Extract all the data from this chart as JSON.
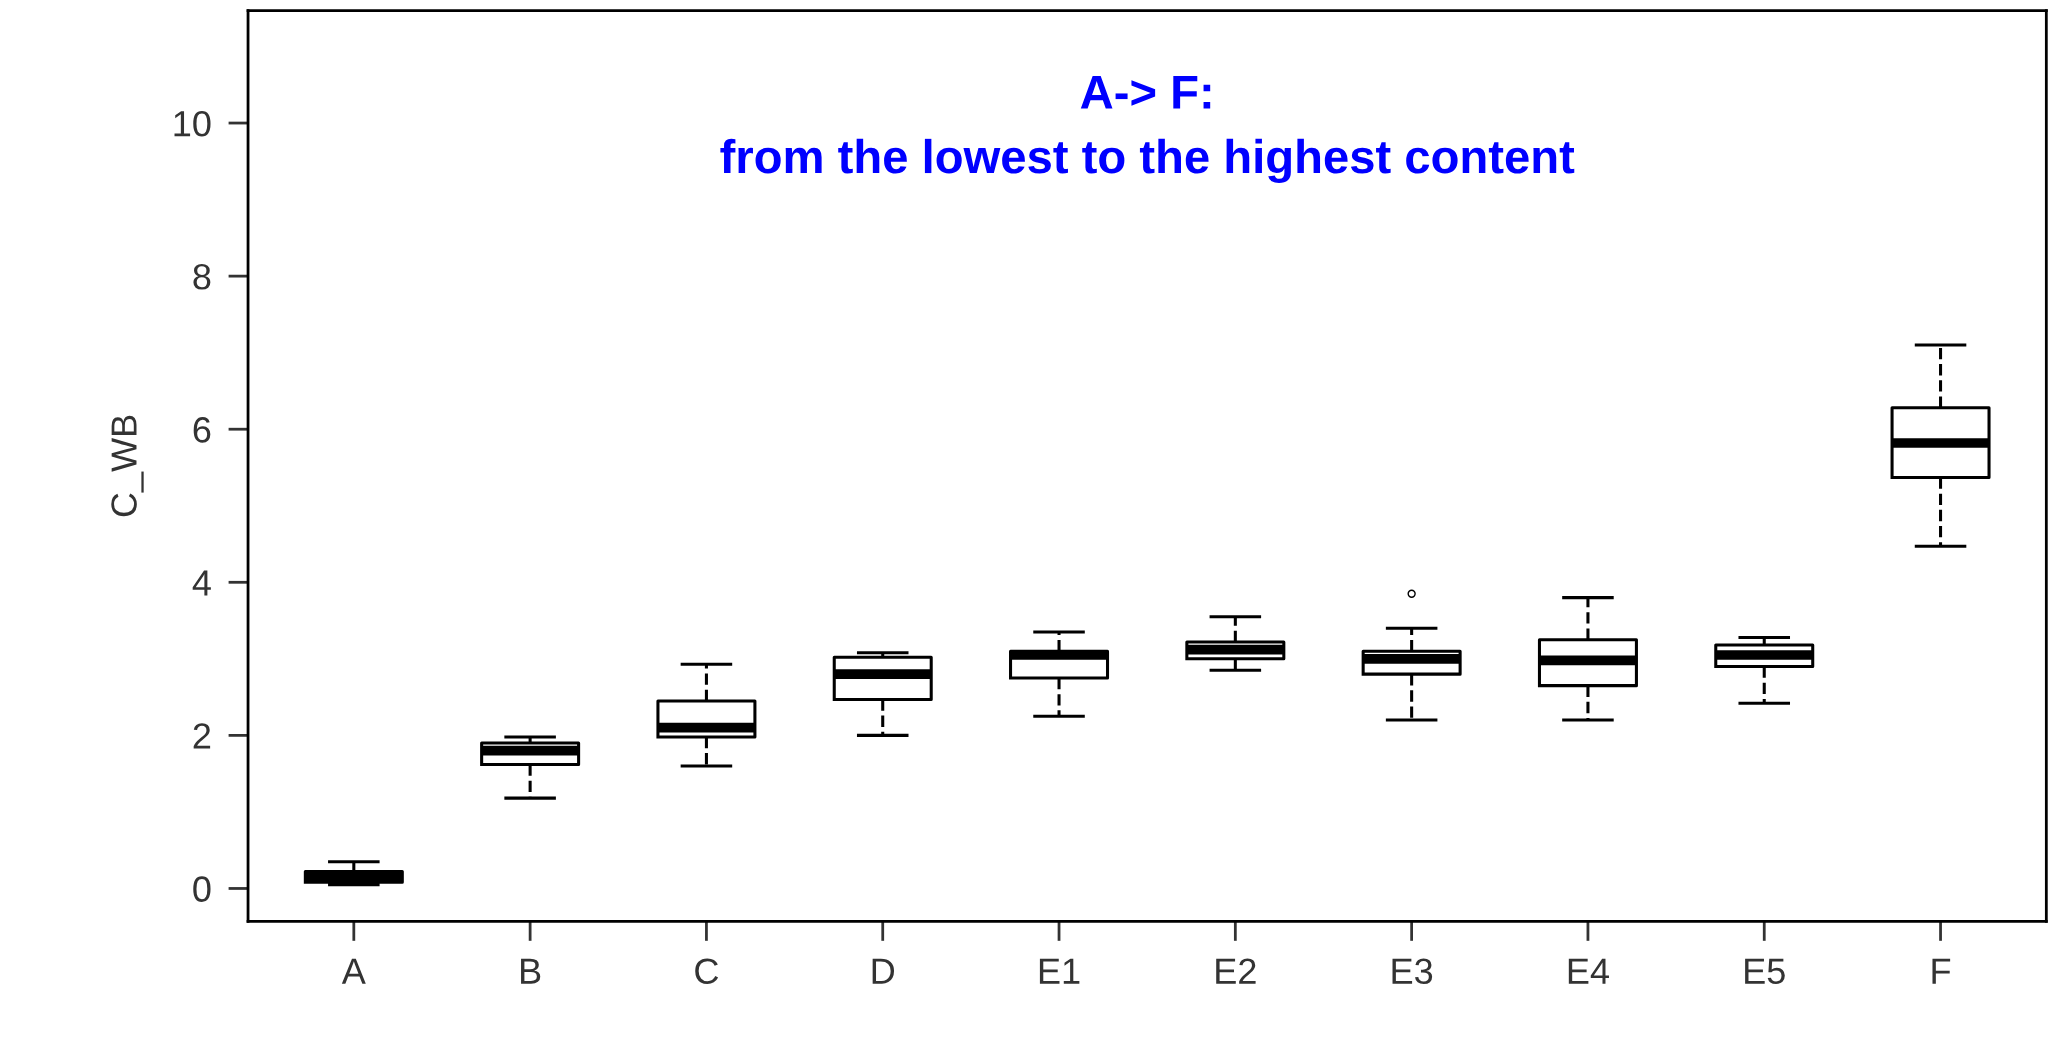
{
  "chart_data": {
    "type": "box",
    "title": "A-> F:\nfrom the lowest to the highest content",
    "ylabel": "C_WB",
    "categories": [
      "A",
      "B",
      "C",
      "D",
      "E1",
      "E2",
      "E3",
      "E4",
      "E5",
      "F"
    ],
    "boxes": [
      {
        "low": 0.05,
        "q1": 0.08,
        "median": 0.15,
        "q3": 0.22,
        "high": 0.35
      },
      {
        "low": 1.18,
        "q1": 1.62,
        "median": 1.8,
        "q3": 1.9,
        "high": 1.98
      },
      {
        "low": 1.6,
        "q1": 1.98,
        "median": 2.1,
        "q3": 2.45,
        "high": 2.93
      },
      {
        "low": 2.0,
        "q1": 2.47,
        "median": 2.8,
        "q3": 3.02,
        "high": 3.08
      },
      {
        "low": 2.25,
        "q1": 2.75,
        "median": 3.05,
        "q3": 3.1,
        "high": 3.35
      },
      {
        "low": 2.85,
        "q1": 3.0,
        "median": 3.12,
        "q3": 3.22,
        "high": 3.55
      },
      {
        "low": 2.2,
        "q1": 2.8,
        "median": 3.0,
        "q3": 3.1,
        "high": 3.4,
        "outliers": [
          3.85
        ]
      },
      {
        "low": 2.2,
        "q1": 2.65,
        "median": 2.98,
        "q3": 3.25,
        "high": 3.8
      },
      {
        "low": 2.42,
        "q1": 2.9,
        "median": 3.05,
        "q3": 3.18,
        "high": 3.28
      },
      {
        "low": 4.47,
        "q1": 5.37,
        "median": 5.82,
        "q3": 6.28,
        "high": 7.1
      }
    ],
    "ylim": [
      -0.43,
      11.47
    ],
    "yticks": [
      0,
      2,
      4,
      6,
      8,
      10
    ],
    "grid": false,
    "line_style": "dashed"
  }
}
